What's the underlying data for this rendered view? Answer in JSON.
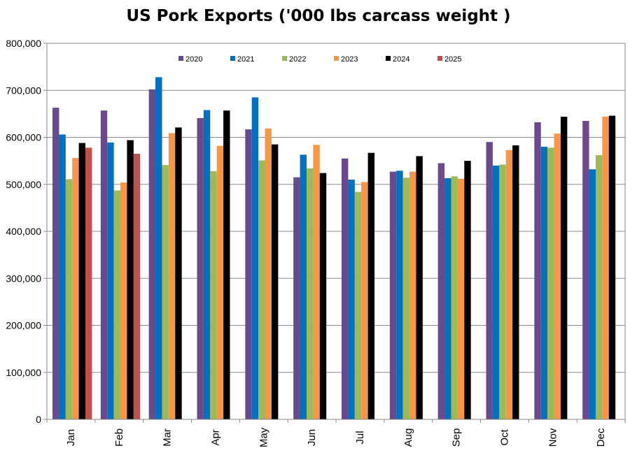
{
  "chart_data": {
    "type": "bar",
    "title": "US Pork Exports ('000 lbs carcass weight )",
    "xlabel": "",
    "ylabel": "",
    "ylim": [
      0,
      800000
    ],
    "yticks": [
      0,
      100000,
      200000,
      300000,
      400000,
      500000,
      600000,
      700000,
      800000
    ],
    "ytick_labels": [
      "0",
      "100,000",
      "200,000",
      "300,000",
      "400,000",
      "500,000",
      "600,000",
      "700,000",
      "800,000"
    ],
    "grid": true,
    "legend_position": "top",
    "categories": [
      "Jan",
      "Feb",
      "Mar",
      "Apr",
      "May",
      "Jun",
      "Jul",
      "Aug",
      "Sep",
      "Oct",
      "Nov",
      "Dec"
    ],
    "series": [
      {
        "name": "2020",
        "color": "#6A4A8C",
        "values": [
          663000,
          657000,
          702000,
          641000,
          617000,
          515000,
          555000,
          527000,
          545000,
          590000,
          632000,
          635000
        ]
      },
      {
        "name": "2021",
        "color": "#0070C0",
        "values": [
          606000,
          589000,
          728000,
          658000,
          685000,
          563000,
          510000,
          529000,
          513000,
          540000,
          580000,
          532000
        ]
      },
      {
        "name": "2022",
        "color": "#9BBB59",
        "values": [
          511000,
          487000,
          541000,
          528000,
          551000,
          534000,
          484000,
          514000,
          517000,
          542000,
          578000,
          562000
        ]
      },
      {
        "name": "2023",
        "color": "#F79646",
        "values": [
          556000,
          504000,
          609000,
          582000,
          619000,
          584000,
          505000,
          527000,
          512000,
          573000,
          608000,
          644000
        ]
      },
      {
        "name": "2024",
        "color": "#000000",
        "values": [
          588000,
          594000,
          621000,
          657000,
          585000,
          524000,
          567000,
          560000,
          550000,
          583000,
          644000,
          646000
        ]
      },
      {
        "name": "2025",
        "color": "#C0504D",
        "values": [
          578000,
          565000,
          null,
          null,
          null,
          null,
          null,
          null,
          null,
          null,
          null,
          null
        ]
      }
    ]
  }
}
